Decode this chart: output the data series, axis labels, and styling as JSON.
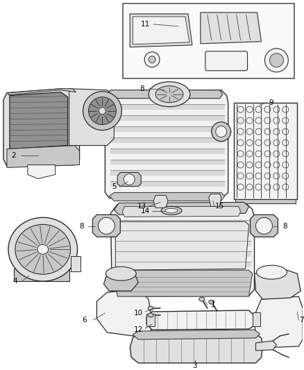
{
  "bg": "#ffffff",
  "lc": "#2a2a2a",
  "lc_light": "#888888",
  "lc_dark": "#111111",
  "fc_light": "#f2f2f2",
  "fc_med": "#e0e0e0",
  "fc_dark": "#c8c8c8",
  "fc_vdark": "#909090",
  "fig_w": 4.38,
  "fig_h": 5.33,
  "dpi": 100,
  "label_fs": 7.5
}
